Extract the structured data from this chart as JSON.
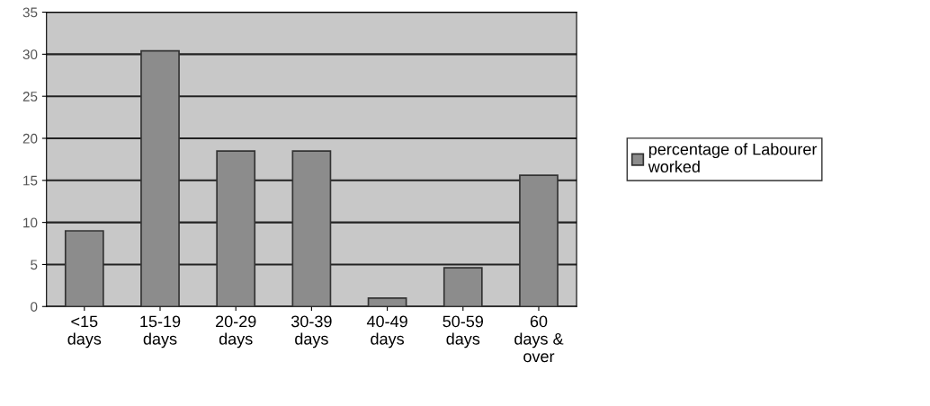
{
  "chart_data": {
    "type": "bar",
    "categories": [
      "<15\ndays",
      "15-19\ndays",
      "20-29\ndays",
      "30-39\ndays",
      "40-49\ndays",
      "50-59\ndays",
      "60\ndays &\nover"
    ],
    "series": [
      {
        "name": "percentage of Labourer\nworked",
        "color": "#8c8c8c",
        "values": [
          9,
          30.4,
          18.5,
          18.5,
          1,
          4.6,
          15.6
        ]
      }
    ],
    "ylim": [
      0,
      35
    ],
    "yticks": [
      0,
      5,
      10,
      15,
      20,
      25,
      30,
      35
    ],
    "grid": "y",
    "legend": "right"
  }
}
